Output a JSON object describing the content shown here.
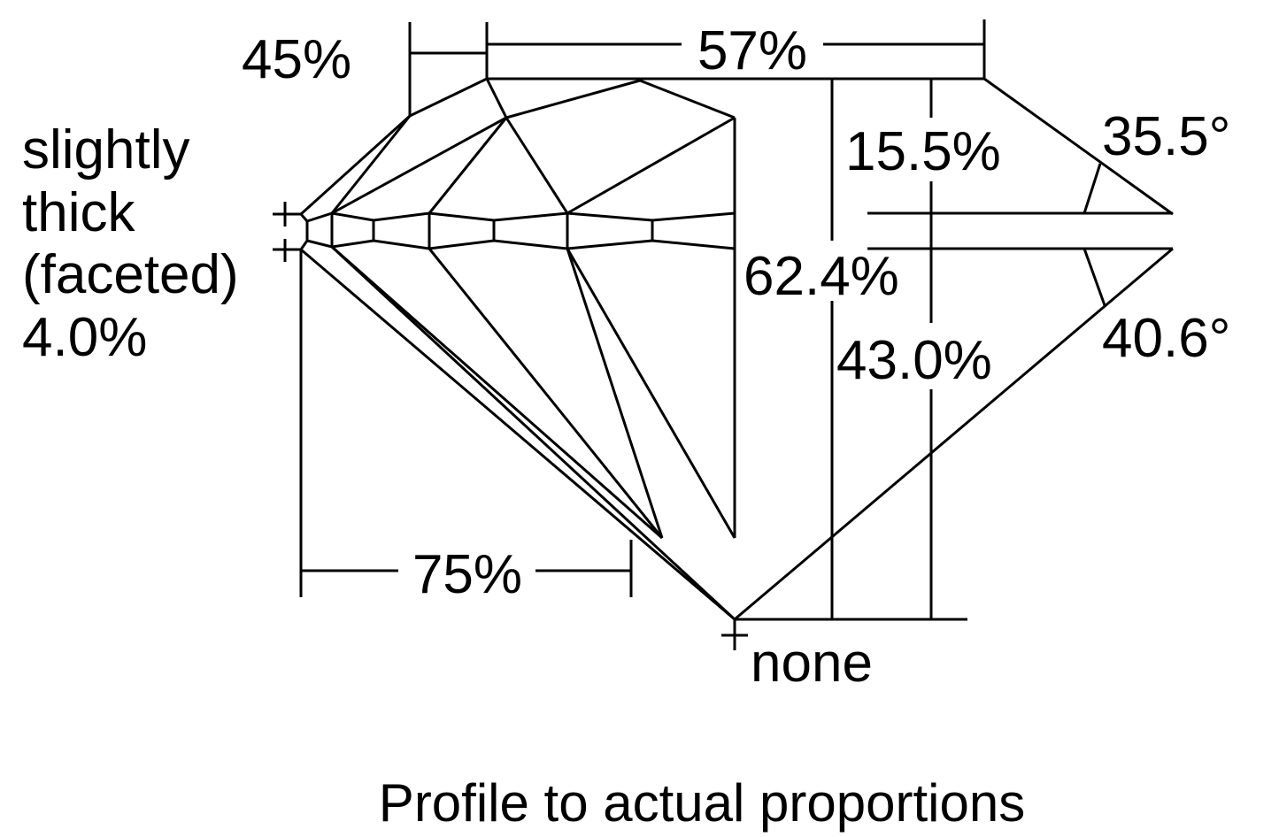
{
  "labels": {
    "crown_height_45": "45%",
    "table_57": "57%",
    "girdle_line1": "slightly",
    "girdle_line2": "thick",
    "girdle_line3": "(faceted)",
    "girdle_pct": "4.0%",
    "crown_depth": "15.5%",
    "crown_angle": "35.5°",
    "total_depth": "62.4%",
    "pavilion_angle": "40.6°",
    "pavilion_depth": "43.0%",
    "lower_half": "75%",
    "culet": "none"
  },
  "caption": "Profile to actual proportions",
  "colors": {
    "stroke": "#000000",
    "background": "#ffffff"
  }
}
